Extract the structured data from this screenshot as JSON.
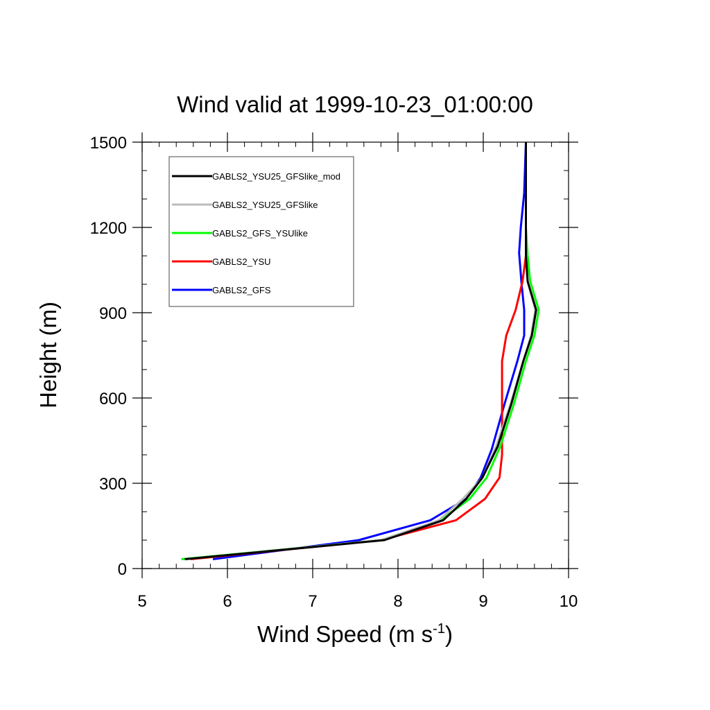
{
  "chart_data": {
    "type": "line",
    "title": "Wind valid at 1999-10-23_01:00:00",
    "xlabel": {
      "base": "Wind Speed (m s",
      "sup": "-1",
      "tail": ")"
    },
    "ylabel": "Height (m)",
    "xlim": [
      5,
      10
    ],
    "ylim": [
      0,
      1500
    ],
    "xticks": [
      5,
      6,
      7,
      8,
      9,
      10
    ],
    "yticks": [
      0,
      300,
      600,
      900,
      1200,
      1500
    ],
    "xtick_labels": [
      "5",
      "6",
      "7",
      "8",
      "9",
      "10"
    ],
    "ytick_labels": [
      "0",
      "300",
      "600",
      "900",
      "1200",
      "1500"
    ],
    "x_minor_step": 0.2,
    "y_minor_step": 100,
    "legend_position": "top-left",
    "series": [
      {
        "name": "GABLS2_GFS",
        "color": "#0000ff",
        "points": [
          [
            5.83,
            33
          ],
          [
            7.54,
            100
          ],
          [
            8.38,
            170
          ],
          [
            8.8,
            245
          ],
          [
            8.97,
            320
          ],
          [
            9.1,
            420
          ],
          [
            9.25,
            580
          ],
          [
            9.4,
            730
          ],
          [
            9.48,
            820
          ],
          [
            9.48,
            910
          ],
          [
            9.45,
            1000
          ],
          [
            9.42,
            1110
          ],
          [
            9.44,
            1200
          ],
          [
            9.48,
            1320
          ],
          [
            9.5,
            1500
          ]
        ]
      },
      {
        "name": "GABLS2_YSU",
        "color": "#ff0000",
        "points": [
          [
            5.57,
            33
          ],
          [
            7.8,
            100
          ],
          [
            8.68,
            170
          ],
          [
            9.02,
            245
          ],
          [
            9.19,
            320
          ],
          [
            9.22,
            400
          ],
          [
            9.22,
            530
          ],
          [
            9.22,
            730
          ],
          [
            9.27,
            820
          ],
          [
            9.38,
            910
          ],
          [
            9.46,
            1010
          ],
          [
            9.5,
            1100
          ],
          [
            9.5,
            1200
          ],
          [
            9.5,
            1320
          ],
          [
            9.5,
            1500
          ]
        ]
      },
      {
        "name": "GABLS2_GFS_YSUlike",
        "color": "#00ff00",
        "points": [
          [
            5.46,
            33
          ],
          [
            7.8,
            100
          ],
          [
            8.5,
            170
          ],
          [
            8.84,
            245
          ],
          [
            9.04,
            320
          ],
          [
            9.2,
            430
          ],
          [
            9.36,
            580
          ],
          [
            9.5,
            730
          ],
          [
            9.6,
            820
          ],
          [
            9.65,
            910
          ],
          [
            9.55,
            1010
          ],
          [
            9.52,
            1100
          ],
          [
            9.5,
            1200
          ],
          [
            9.5,
            1320
          ],
          [
            9.5,
            1500
          ]
        ]
      },
      {
        "name": "GABLS2_YSU25_GFSlike",
        "color": "#bbbbbb",
        "points": [
          [
            5.5,
            33
          ],
          [
            7.8,
            100
          ],
          [
            8.48,
            170
          ],
          [
            8.76,
            245
          ],
          [
            8.99,
            320
          ],
          [
            9.15,
            430
          ],
          [
            9.32,
            580
          ],
          [
            9.47,
            730
          ],
          [
            9.56,
            820
          ],
          [
            9.61,
            910
          ],
          [
            9.52,
            1010
          ],
          [
            9.5,
            1100
          ],
          [
            9.5,
            1200
          ],
          [
            9.5,
            1320
          ],
          [
            9.5,
            1500
          ]
        ]
      },
      {
        "name": "GABLS2_YSU25_GFSlike_mod",
        "color": "#000000",
        "points": [
          [
            5.5,
            33
          ],
          [
            7.84,
            100
          ],
          [
            8.53,
            170
          ],
          [
            8.8,
            245
          ],
          [
            8.99,
            320
          ],
          [
            9.17,
            430
          ],
          [
            9.33,
            580
          ],
          [
            9.47,
            730
          ],
          [
            9.57,
            820
          ],
          [
            9.62,
            910
          ],
          [
            9.52,
            1010
          ],
          [
            9.5,
            1100
          ],
          [
            9.5,
            1200
          ],
          [
            9.5,
            1320
          ],
          [
            9.5,
            1500
          ]
        ]
      }
    ],
    "legend_order": [
      "GABLS2_YSU25_GFSlike_mod",
      "GABLS2_YSU25_GFSlike",
      "GABLS2_GFS_YSUlike",
      "GABLS2_YSU",
      "GABLS2_GFS"
    ]
  }
}
